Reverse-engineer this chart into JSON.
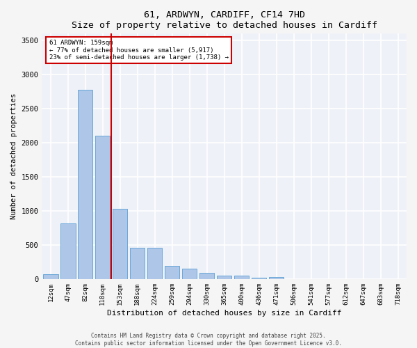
{
  "title": "61, ARDWYN, CARDIFF, CF14 7HD",
  "subtitle": "Size of property relative to detached houses in Cardiff",
  "xlabel": "Distribution of detached houses by size in Cardiff",
  "ylabel": "Number of detached properties",
  "categories": [
    "12sqm",
    "47sqm",
    "82sqm",
    "118sqm",
    "153sqm",
    "188sqm",
    "224sqm",
    "259sqm",
    "294sqm",
    "330sqm",
    "365sqm",
    "400sqm",
    "436sqm",
    "471sqm",
    "506sqm",
    "541sqm",
    "577sqm",
    "612sqm",
    "647sqm",
    "683sqm",
    "718sqm"
  ],
  "values": [
    75,
    820,
    2780,
    2100,
    1030,
    460,
    460,
    195,
    150,
    90,
    55,
    55,
    20,
    25,
    0,
    0,
    0,
    0,
    0,
    0,
    0
  ],
  "bar_color": "#aec6e8",
  "bar_edge_color": "#5a9fd4",
  "marker_index": 4,
  "marker_label": "61 ARDWYN: 159sqm",
  "marker_line_color": "#cc0000",
  "annotation_line1": "← 77% of detached houses are smaller (5,917)",
  "annotation_line2": "23% of semi-detached houses are larger (1,738) →",
  "annotation_box_color": "#cc0000",
  "ylim": [
    0,
    3600
  ],
  "yticks": [
    0,
    500,
    1000,
    1500,
    2000,
    2500,
    3000,
    3500
  ],
  "background_color": "#eef2f8",
  "grid_color": "#ffffff",
  "footer_line1": "Contains HM Land Registry data © Crown copyright and database right 2025.",
  "footer_line2": "Contains public sector information licensed under the Open Government Licence v3.0."
}
